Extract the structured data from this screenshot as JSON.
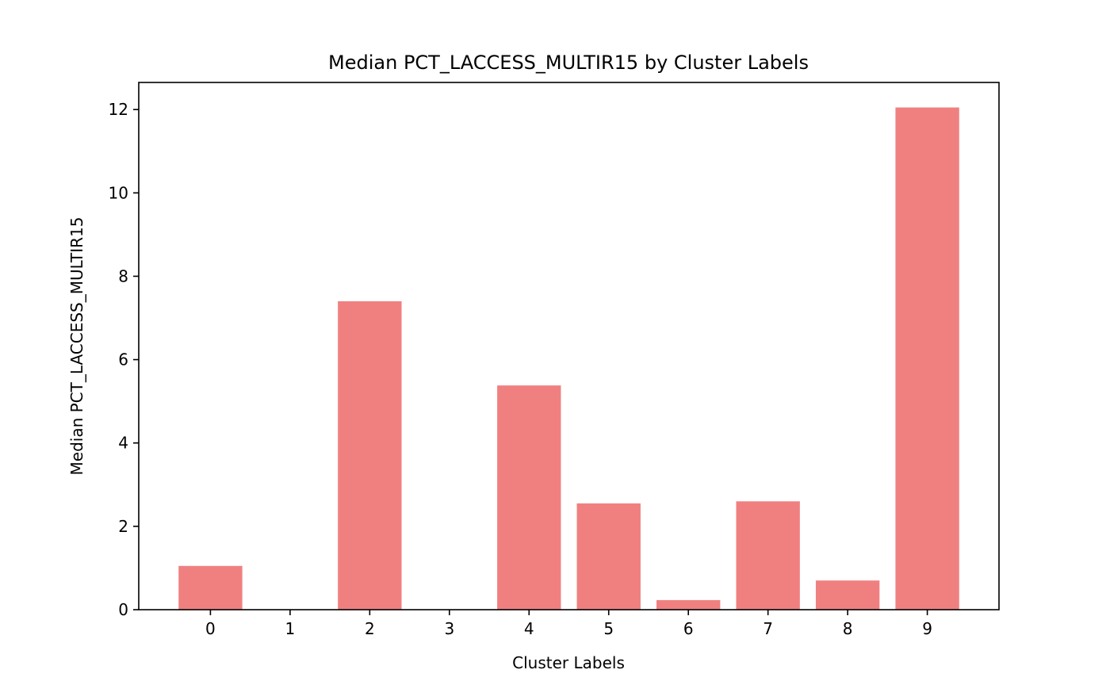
{
  "chart_data": {
    "type": "bar",
    "title": "Median PCT_LACCESS_MULTIR15 by Cluster Labels",
    "xlabel": "Cluster Labels",
    "ylabel": "Median PCT_LACCESS_MULTIR15",
    "categories": [
      "0",
      "1",
      "2",
      "3",
      "4",
      "5",
      "6",
      "7",
      "8",
      "9"
    ],
    "values": [
      1.05,
      0.0,
      7.4,
      0.0,
      5.38,
      2.55,
      0.23,
      2.6,
      0.7,
      12.05
    ],
    "yticks": [
      0,
      2,
      4,
      6,
      8,
      10,
      12
    ],
    "ylim": [
      0,
      12.65
    ],
    "grid": false,
    "bar_color": "#f08080"
  }
}
